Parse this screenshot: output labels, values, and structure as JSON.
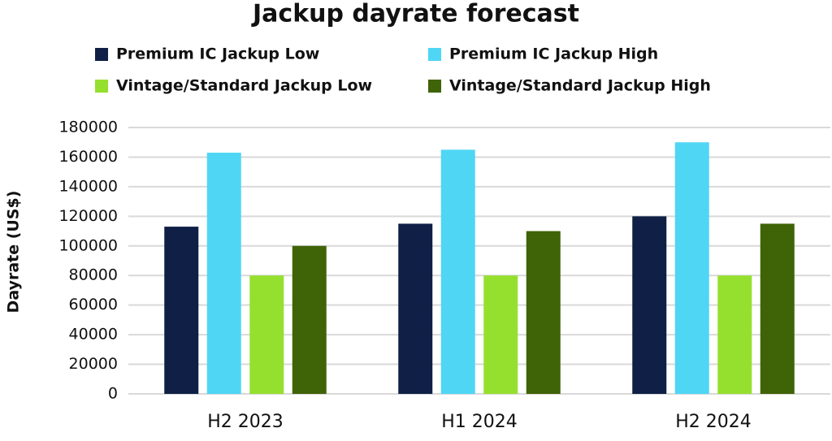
{
  "chart_data": {
    "type": "bar",
    "title": "Jackup dayrate forecast",
    "y_label": "Dayrate (US$)",
    "categories": [
      "H2 2023",
      "H1 2024",
      "H2 2024"
    ],
    "series": [
      {
        "name": "Premium IC Jackup Low",
        "color": "#0f1f45",
        "values": [
          113000,
          115000,
          120000
        ]
      },
      {
        "name": "Premium IC Jackup High",
        "color": "#4fd6f5",
        "values": [
          163000,
          165000,
          170000
        ]
      },
      {
        "name": "Vintage/Standard Jackup Low",
        "color": "#95e02e",
        "values": [
          80000,
          80000,
          80000
        ]
      },
      {
        "name": "Vintage/Standard Jackup High",
        "color": "#3f6307",
        "values": [
          100000,
          110000,
          115000
        ]
      }
    ],
    "ylim": [
      0,
      180000
    ],
    "yticks": [
      0,
      20000,
      40000,
      60000,
      80000,
      100000,
      120000,
      140000,
      160000,
      180000
    ],
    "grid": true,
    "legend": "top"
  }
}
